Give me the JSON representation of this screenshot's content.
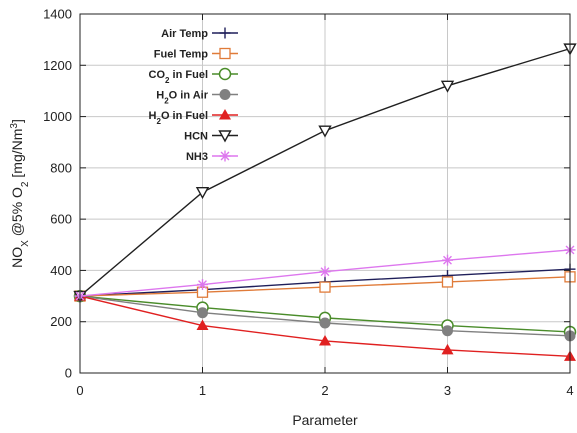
{
  "chart_data": {
    "type": "line",
    "xlabel": "Parameter",
    "ylabel": {
      "parts": [
        {
          "text": "NO",
          "shift": "none"
        },
        {
          "text": "X",
          "shift": "sub"
        },
        {
          "text": " @5% O",
          "shift": "none"
        },
        {
          "text": "2",
          "shift": "sub"
        },
        {
          "text": " [mg/Nm",
          "shift": "none"
        },
        {
          "text": "3",
          "shift": "super"
        },
        {
          "text": "]",
          "shift": "none"
        }
      ]
    },
    "xlim": [
      0,
      4
    ],
    "ylim": [
      0,
      1400
    ],
    "xticks": [
      0,
      1,
      2,
      3,
      4
    ],
    "yticks": [
      0,
      200,
      400,
      600,
      800,
      1000,
      1200,
      1400
    ],
    "grid": true,
    "legend_position": "top-left",
    "x": [
      0,
      1,
      2,
      3,
      4
    ],
    "series": [
      {
        "name": "Air Temp",
        "name_parts": [
          {
            "text": "Air Temp",
            "shift": "none"
          }
        ],
        "values": [
          300,
          325,
          355,
          380,
          405
        ],
        "color": "#1f1f5a",
        "marker": "plus"
      },
      {
        "name": "Fuel Temp",
        "name_parts": [
          {
            "text": "Fuel Temp",
            "shift": "none"
          }
        ],
        "values": [
          300,
          315,
          335,
          355,
          375
        ],
        "color": "#e07b39",
        "marker": "square-open"
      },
      {
        "name": "CO2 in Fuel",
        "name_parts": [
          {
            "text": "CO",
            "shift": "none"
          },
          {
            "text": "2",
            "shift": "sub"
          },
          {
            "text": " in Fuel",
            "shift": "none"
          }
        ],
        "values": [
          300,
          255,
          215,
          185,
          160
        ],
        "color": "#4a8c2a",
        "marker": "circle-open"
      },
      {
        "name": "H2O in Air",
        "name_parts": [
          {
            "text": "H",
            "shift": "none"
          },
          {
            "text": "2",
            "shift": "sub"
          },
          {
            "text": "O in Air",
            "shift": "none"
          }
        ],
        "values": [
          300,
          235,
          195,
          165,
          145
        ],
        "color": "#808080",
        "marker": "circle-filled"
      },
      {
        "name": "H2O in Fuel",
        "name_parts": [
          {
            "text": "H",
            "shift": "none"
          },
          {
            "text": "2",
            "shift": "sub"
          },
          {
            "text": "O in Fuel",
            "shift": "none"
          }
        ],
        "values": [
          300,
          185,
          125,
          90,
          65
        ],
        "color": "#e02020",
        "marker": "triangle-filled"
      },
      {
        "name": "HCN",
        "name_parts": [
          {
            "text": "HCN",
            "shift": "none"
          }
        ],
        "values": [
          300,
          705,
          945,
          1120,
          1265
        ],
        "color": "#202020",
        "marker": "triangle-down-open"
      },
      {
        "name": "NH3",
        "name_parts": [
          {
            "text": "NH3",
            "shift": "none"
          }
        ],
        "values": [
          300,
          345,
          395,
          440,
          480
        ],
        "color": "#dd77ee",
        "marker": "asterisk"
      }
    ]
  }
}
